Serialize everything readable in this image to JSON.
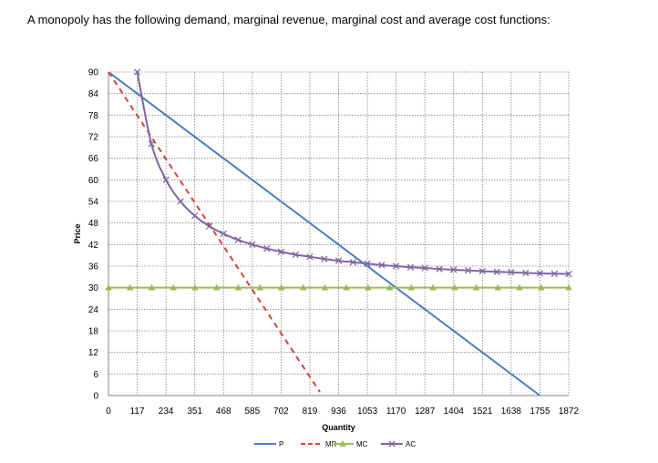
{
  "heading": "A monopoly has the following demand, marginal revenue, marginal cost and average cost functions:",
  "chart_data": {
    "type": "line",
    "title": "",
    "xlabel": "Quantity",
    "ylabel": "Price",
    "x_ticks": [
      0,
      117,
      234,
      351,
      468,
      585,
      702,
      819,
      936,
      1053,
      1170,
      1287,
      1404,
      1521,
      1638,
      1755,
      1872
    ],
    "y_ticks": [
      0,
      6,
      12,
      18,
      24,
      30,
      36,
      42,
      48,
      54,
      60,
      66,
      72,
      78,
      84,
      90
    ],
    "xlim": [
      0,
      1872
    ],
    "ylim": [
      0,
      90
    ],
    "grid": true,
    "legend_position": "bottom",
    "series": [
      {
        "name": "P",
        "color": "#4a7ebb",
        "style": "solid",
        "marker": "none",
        "x": [
          0,
          1755
        ],
        "y": [
          90,
          0
        ]
      },
      {
        "name": "MR",
        "color": "#d9403c",
        "style": "dashed",
        "marker": "none",
        "x": [
          0,
          860
        ],
        "y": [
          90,
          1
        ]
      },
      {
        "name": "MC",
        "color": "#9bbb59",
        "style": "solid",
        "marker": "triangle",
        "x": [
          0,
          88,
          176,
          264,
          352,
          440,
          528,
          616,
          704,
          792,
          880,
          968,
          1056,
          1144,
          1232,
          1320,
          1408,
          1496,
          1584,
          1672,
          1760,
          1872
        ],
        "y": [
          30,
          30,
          30,
          30,
          30,
          30,
          30,
          30,
          30,
          30,
          30,
          30,
          30,
          30,
          30,
          30,
          30,
          30,
          30,
          30,
          30,
          30
        ]
      },
      {
        "name": "AC",
        "color": "#8064a2",
        "style": "solid",
        "marker": "x",
        "x": [
          117,
          175,
          234,
          293,
          351,
          410,
          468,
          527,
          585,
          644,
          702,
          761,
          819,
          878,
          936,
          995,
          1053,
          1112,
          1170,
          1229,
          1287,
          1346,
          1404,
          1463,
          1521,
          1580,
          1638,
          1697,
          1755,
          1814,
          1872
        ],
        "y": [
          90,
          70,
          60,
          54,
          50,
          47.1,
          45,
          43.3,
          42,
          40.9,
          40,
          39.2,
          38.6,
          38,
          37.5,
          37.1,
          36.7,
          36.3,
          36,
          35.7,
          35.5,
          35.2,
          35,
          34.8,
          34.6,
          34.4,
          34.3,
          34.1,
          34,
          33.9,
          33.8
        ]
      }
    ]
  }
}
